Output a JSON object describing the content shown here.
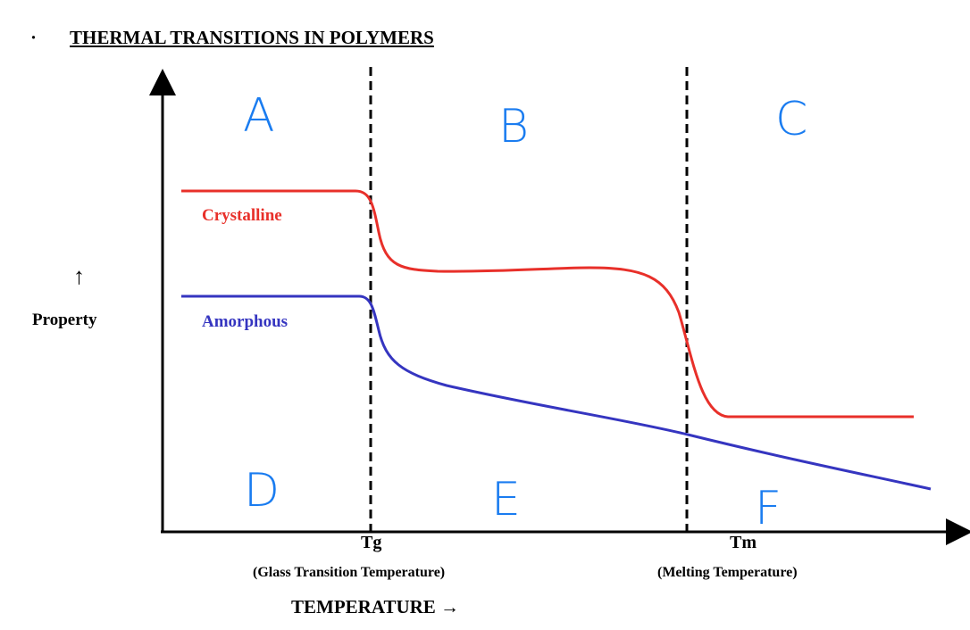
{
  "title": "THERMAL TRANSITIONS IN POLYMERS",
  "bullet": "·",
  "y_axis": {
    "label": "Property",
    "arrow": "↑"
  },
  "x_axis": {
    "label": "TEMPERATURE →"
  },
  "markers": [
    {
      "symbol": "Tg",
      "description": "(Glass Transition Temperature)"
    },
    {
      "symbol": "Tm",
      "description": "(Melting Temperature)"
    }
  ],
  "series": [
    {
      "name": "Crystalline",
      "color": "#e8302a"
    },
    {
      "name": "Amorphous",
      "color": "#3535c0"
    }
  ],
  "region_labels": [
    "A",
    "B",
    "C",
    "D",
    "E",
    "F"
  ],
  "region_label_color": "#1a7cf0"
}
